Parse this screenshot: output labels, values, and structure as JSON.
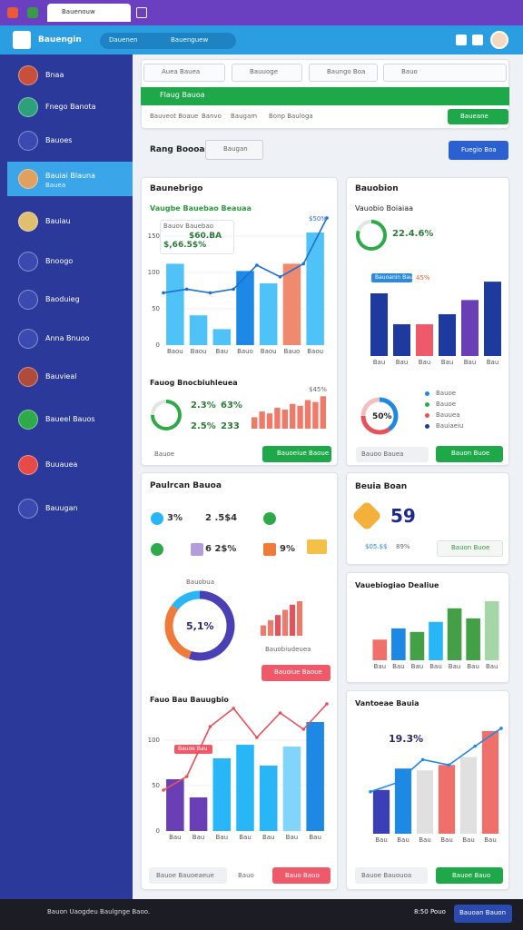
{
  "window": {
    "tab": "Bauenouw"
  },
  "header": {
    "brand": "Bauengin",
    "search": [
      "Dauenen",
      "Bauenguew"
    ]
  },
  "sidebar": {
    "items": [
      {
        "label": "Bnaa"
      },
      {
        "label": "Fnego Banota"
      },
      {
        "label": "Bauoes"
      },
      {
        "label": "Bauiai Blauna",
        "sub": "Bauea"
      },
      {
        "label": "Bauiau"
      },
      {
        "label": "Bnoogo"
      },
      {
        "label": "Baoduieg"
      },
      {
        "label": "Anna Bnuoo"
      },
      {
        "label": "Bauvieal"
      },
      {
        "label": "Baueel Bauos"
      },
      {
        "label": "Buuauea"
      },
      {
        "label": "Bauugan"
      }
    ]
  },
  "topbar": {
    "tabs": [
      "Auea Bauea",
      "Bauuoge",
      "Baungo Boa",
      "Bauo"
    ],
    "banner": "Flaug Bauoa",
    "links": [
      "Bauveot Boaue",
      "Banvo",
      "Baugam",
      "Bonp Bauloga"
    ],
    "button": "Baueane"
  },
  "toolbar": {
    "title": "Rang Boooa",
    "select": "Baugan",
    "button": "Fuegio Boa"
  },
  "card_a": {
    "title": "Baunebrigo",
    "subtitle": "Vaugbe Bauebao Beauaa",
    "callout": [
      "Bauov Bauebao",
      "$60.BA",
      "$,66.5$%"
    ],
    "top_label": "$50%",
    "section": "Fauog Bnocbiuhleuea",
    "stats": [
      "2.3%",
      "63%",
      "2.5%",
      "233"
    ],
    "area_label": "$45%",
    "footer": "Bauoe",
    "button": "Bauoeiue Baoue"
  },
  "card_b": {
    "title": "Bauobion",
    "subtitle": "Vauobio Boiaiaa",
    "ring_label": "22.4.6%",
    "pill": "Bauoanin Bauoe",
    "pill_value": "45%",
    "donut_label": "50%",
    "legend": [
      "Bauoe",
      "Bauoe",
      "Bauuea",
      "Bauiaeiu"
    ],
    "footer": "Bauoo Bauea",
    "button": "Bauon Buoe"
  },
  "card_c": {
    "title": "Paulrcan Bauoa",
    "stats": [
      "3%",
      "2 .5$4",
      "6 2$%",
      "9%"
    ],
    "donut_title": "Bauobua",
    "donut_label": "5,1%",
    "bars_label": "Bauobiudeuea",
    "button": "Bauoiue Baoue",
    "section": "Fauo Bau Bauugbio",
    "pill": "Bauoe Bau",
    "footer": "Bauoe Bauoeaeue",
    "footer2": "Bauo",
    "button2": "Bauo Bauo"
  },
  "card_d": {
    "title": "Beuia Boan",
    "big": "59",
    "stats": [
      "$05.$$",
      "89%"
    ],
    "button": "Bauon Buoe"
  },
  "card_e": {
    "title": "Vauebiogiao Dealiue"
  },
  "card_f": {
    "title": "Vantoeae Bauia",
    "callout": "19.3%",
    "footer": "Bauoe Bauouoa",
    "button": "Bauoe Bauo"
  },
  "taskbar": {
    "status": "Bauon Uaogdeu Baulgnge Baoo.",
    "time": "8:50 Pouo",
    "button": "Bauoan Bauon"
  },
  "charts": {
    "a": {
      "ylim": [
        0,
        175
      ],
      "yticks": [
        0,
        50,
        100,
        150
      ],
      "values": [
        112,
        41,
        22,
        102,
        85,
        112,
        155
      ],
      "colors": [
        "#4fc3f7",
        "#4fc3f7",
        "#4fc3f7",
        "#1e88e5",
        "#4fc3f7",
        "#ef8a6f",
        "#4fc3f7"
      ],
      "line": [
        72,
        77,
        72,
        77,
        110,
        94,
        112,
        175
      ],
      "line_color": "#1e6fd0",
      "categories": [
        "Baou",
        "Baou",
        "Bau",
        "Bauo",
        "Baou",
        "Bauo",
        "Baou"
      ]
    },
    "a_small": {
      "ylim": [
        0,
        100
      ],
      "values": [
        30,
        45,
        40,
        55,
        50,
        65,
        60,
        75,
        70,
        85
      ],
      "colors": [
        "#ef7a6a",
        "#ef7a6a",
        "#ef7a6a",
        "#ef7a6a",
        "#ef7a6a",
        "#ef7a6a",
        "#ef7a6a",
        "#ef7a6a",
        "#ef7a6a",
        "#ef7a6a"
      ]
    },
    "b": {
      "ylim": [
        0,
        100
      ],
      "values": [
        75,
        38,
        38,
        50,
        67,
        89
      ],
      "colors": [
        "#1e3a9e",
        "#1e3a9e",
        "#ef5a6a",
        "#1e3a9e",
        "#6a3fb5",
        "#1e3a9e"
      ],
      "categories": [
        "Bau",
        "Bau",
        "Bau",
        "Bau",
        "Bau",
        "Bau"
      ]
    },
    "c_small": {
      "ylim": [
        0,
        100
      ],
      "values": [
        30,
        45,
        60,
        75,
        90,
        100
      ],
      "colors": [
        "#ef7a6a",
        "#ef7a6a",
        "#e8505a",
        "#ef7a6a",
        "#e8505a",
        "#ef7a6a"
      ]
    },
    "c": {
      "ylim": [
        0,
        145
      ],
      "yticks": [
        0,
        50,
        100
      ],
      "values": [
        57,
        37,
        80,
        95,
        72,
        93,
        120
      ],
      "colors": [
        "#6a3fb5",
        "#6a3fb5",
        "#29b6f6",
        "#29b6f6",
        "#29b6f6",
        "#81d4fa",
        "#1e88e5"
      ],
      "line": [
        45,
        60,
        115,
        135,
        103,
        130,
        112,
        140
      ],
      "line_color": "#e8505a",
      "categories": [
        "Bau",
        "Bau",
        "Bau",
        "Bau",
        "Bau",
        "Bau",
        "Bau"
      ]
    },
    "e": {
      "ylim": [
        0,
        100
      ],
      "values": [
        35,
        54,
        48,
        65,
        88,
        71,
        100
      ],
      "colors": [
        "#ef6f6a",
        "#1e88e5",
        "#43a047",
        "#29b6f6",
        "#43a047",
        "#43a047",
        "#a5d6a7"
      ],
      "categories": [
        "Bau",
        "Bau",
        "Bau",
        "Bau",
        "Bau",
        "Bau",
        "Bau"
      ]
    },
    "f": {
      "ylim": [
        0,
        120
      ],
      "values": [
        49,
        73,
        71,
        77,
        86,
        115
      ],
      "colors": [
        "#3a3fb5",
        "#1e88e5",
        "#e0e0e0",
        "#ef6f6a",
        "#e0e0e0",
        "#ef6f6a"
      ],
      "line": [
        47,
        57,
        83,
        77,
        98,
        118
      ],
      "line_color": "#1e88e5",
      "categories": [
        "Bau",
        "Bau",
        "Bau",
        "Bau",
        "Bau",
        "Bau"
      ]
    }
  },
  "donuts": {
    "a": {
      "values": [
        75,
        25
      ],
      "colors": [
        "#2eaa4a",
        "#dfe6e0"
      ]
    },
    "b_ring": {
      "values": [
        80,
        20
      ],
      "colors": [
        "#2eaa4a",
        "#dfe6e0"
      ]
    },
    "b": {
      "values": [
        40,
        35,
        25
      ],
      "colors": [
        "#1e88e5",
        "#e8505a",
        "#f3c0c0"
      ]
    },
    "c": {
      "values": [
        55,
        30,
        15
      ],
      "colors": [
        "#4a3fb5",
        "#ef7a3a",
        "#29b6f6"
      ]
    }
  }
}
